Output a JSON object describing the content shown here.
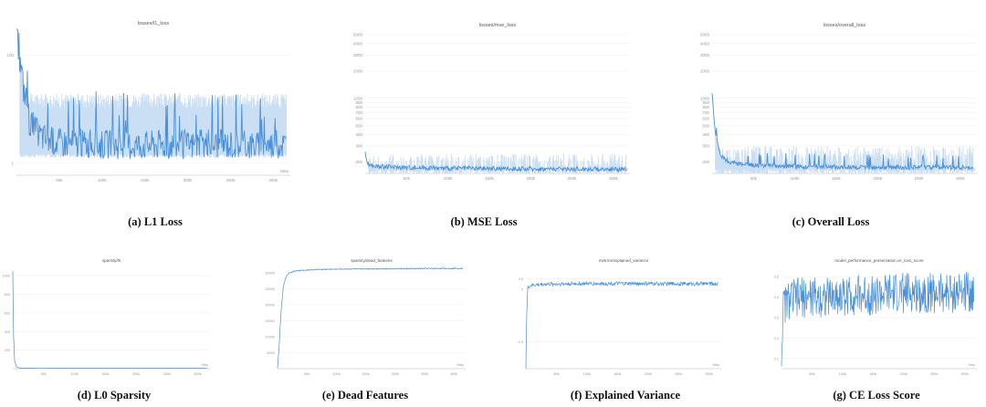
{
  "charts": [
    {
      "id": "l1",
      "chart_data": {
        "type": "line",
        "title": "losses/l1_loss",
        "caption": "(a) L1 Loss",
        "xlabel": "Step",
        "xlim": [
          0,
          320000
        ],
        "x_ticks": [
          50000,
          100000,
          150000,
          200000,
          250000,
          300000
        ],
        "x_tick_labels": [
          "50k",
          "100k",
          "150k",
          "200k",
          "250k",
          "300k"
        ],
        "y_scale": "log",
        "ylim": [
          0.6,
          300
        ],
        "y_ticks": [
          1,
          100
        ],
        "y_tick_labels": [
          "1",
          "100"
        ],
        "color": "#4a90d9",
        "series": [
          {
            "x": [
              0,
              3000,
              8000,
              15000,
              25000,
              40000,
              60000,
              90000,
              120000,
              160000,
              200000,
              240000,
              280000,
              315000
            ],
            "y": [
              220,
              90,
              25,
              6,
              3.5,
              2.6,
              2.4,
              2.3,
              2.2,
              2.3,
              2.2,
              2.3,
              2.2,
              2.3
            ]
          }
        ],
        "band_high": 15,
        "band_low": 1.4
      }
    },
    {
      "id": "mse",
      "chart_data": {
        "type": "line",
        "title": "losses/mse_loss",
        "caption": "(b) MSE Loss",
        "xlabel": "Step",
        "xlim": [
          0,
          320000
        ],
        "x_ticks": [
          50000,
          100000,
          150000,
          200000,
          250000,
          300000
        ],
        "x_tick_labels": [
          "50k",
          "100k",
          "150k",
          "200k",
          "250k",
          "300k"
        ],
        "y_scale": "log",
        "ylim": [
          150,
          5500
        ],
        "y_ticks": [
          200,
          300,
          400,
          500,
          600,
          700,
          800,
          900,
          1000,
          2000,
          3000,
          4000,
          5000
        ],
        "y_tick_labels": [
          "200",
          "300",
          "400",
          "500",
          "600",
          "700",
          "800",
          "900",
          "1000",
          "2000",
          "3000",
          "4000",
          "5000"
        ],
        "color": "#4a90d9",
        "series": [
          {
            "x": [
              0,
              2000,
              5000,
              10000,
              20000,
              40000,
              80000,
              120000,
              160000,
              200000,
              240000,
              280000,
              315000
            ],
            "y": [
              260,
              200,
              185,
              180,
              178,
              175,
              172,
              170,
              169,
              168,
              168,
              167,
              166
            ]
          }
        ],
        "band_high": 190,
        "band_low": 160
      }
    },
    {
      "id": "overall",
      "chart_data": {
        "type": "line",
        "title": "losses/overall_loss",
        "caption": "(c) Overall Loss",
        "xlabel": "Step",
        "xlim": [
          0,
          320000
        ],
        "x_ticks": [
          50000,
          100000,
          150000,
          200000,
          250000,
          300000
        ],
        "x_tick_labels": [
          "50k",
          "100k",
          "150k",
          "200k",
          "250k",
          "300k"
        ],
        "y_scale": "log",
        "ylim": [
          150,
          5500
        ],
        "y_ticks": [
          200,
          300,
          400,
          500,
          600,
          700,
          800,
          900,
          1000,
          2000,
          3000,
          4000,
          5000
        ],
        "y_tick_labels": [
          "200",
          "300",
          "400",
          "500",
          "600",
          "700",
          "800",
          "900",
          "1000",
          "2000",
          "3000",
          "4000",
          "5000"
        ],
        "color": "#4a90d9",
        "series": [
          {
            "x": [
              0,
              2000,
              5000,
              10000,
              20000,
              40000,
              80000,
              120000,
              160000,
              200000,
              240000,
              280000,
              315000
            ],
            "y": [
              1200,
              600,
              350,
              240,
              200,
              185,
              180,
              178,
              176,
              175,
              175,
              174,
              174
            ]
          }
        ],
        "band_high": 230,
        "band_low": 160
      }
    },
    {
      "id": "l0",
      "chart_data": {
        "type": "line",
        "title": "sparsity/l0",
        "caption": "(d) L0 Sparsity",
        "xlabel": "Step",
        "xlim": [
          0,
          320000
        ],
        "x_ticks": [
          50000,
          100000,
          150000,
          200000,
          250000,
          300000
        ],
        "x_tick_labels": [
          "50k",
          "100k",
          "150k",
          "200k",
          "250k",
          "300k"
        ],
        "y_scale": "linear",
        "ylim": [
          0,
          1100
        ],
        "y_ticks": [
          200,
          400,
          600,
          800,
          1000
        ],
        "y_tick_labels": [
          "200",
          "400",
          "600",
          "800",
          "1000"
        ],
        "color": "#4a90d9",
        "series": [
          {
            "x": [
              0,
              1000,
              3000,
              6000,
              10000,
              20000,
              60000,
              120000,
              200000,
              280000,
              315000
            ],
            "y": [
              1050,
              400,
              80,
              20,
              8,
              5,
              4,
              4,
              4,
              4,
              4
            ]
          }
        ]
      }
    },
    {
      "id": "dead",
      "chart_data": {
        "type": "line",
        "title": "sparsity/dead_features",
        "caption": "(e) Dead Features",
        "xlabel": "Step",
        "xlim": [
          0,
          320000
        ],
        "x_ticks": [
          50000,
          100000,
          150000,
          200000,
          250000,
          300000
        ],
        "x_tick_labels": [
          "50k",
          "100k",
          "150k",
          "200k",
          "250k",
          "300k"
        ],
        "y_scale": "linear",
        "ylim": [
          0,
          32000
        ],
        "y_ticks": [
          5000,
          10000,
          15000,
          20000,
          25000,
          30000
        ],
        "y_tick_labels": [
          "5000",
          "10000",
          "15000",
          "20000",
          "25000",
          "30000"
        ],
        "color": "#4a90d9",
        "series": [
          {
            "x": [
              0,
              3000,
              6000,
              10000,
              15000,
              20000,
              30000,
              50000,
              80000,
              120000,
              200000,
              300000,
              315000
            ],
            "y": [
              0,
              8000,
              18000,
              26000,
              29000,
              30000,
              30600,
              30900,
              31100,
              31200,
              31300,
              31400,
              31400
            ]
          }
        ]
      }
    },
    {
      "id": "ev",
      "chart_data": {
        "type": "line",
        "title": "metrics/explained_variance",
        "caption": "(f) Explained Variance",
        "xlabel": "Step",
        "xlim": [
          0,
          320000
        ],
        "x_ticks": [
          50000,
          100000,
          150000,
          200000,
          250000,
          300000
        ],
        "x_tick_labels": [
          "50k",
          "100k",
          "150k",
          "200k",
          "250k",
          "300k"
        ],
        "y_scale": "linear",
        "ylim": [
          -3.8,
          1.1
        ],
        "y_ticks": [
          -2.5,
          0,
          0.5
        ],
        "y_tick_labels": [
          "-2.5",
          "0",
          "0.5"
        ],
        "color": "#4a90d9",
        "series": [
          {
            "x": [
              0,
              1000,
              3000,
              6000,
              10000,
              30000,
              80000,
              150000,
              220000,
              280000,
              315000
            ],
            "y": [
              -3.8,
              -1.5,
              0.05,
              0.15,
              0.2,
              0.25,
              0.27,
              0.28,
              0.27,
              0.27,
              0.27
            ]
          }
        ]
      }
    },
    {
      "id": "ce",
      "chart_data": {
        "type": "line",
        "title": "model_performance_preservation.ce_loss_score",
        "caption": "(g) CE Loss Score",
        "xlabel": "Step",
        "xlim": [
          0,
          320000
        ],
        "x_ticks": [
          50000,
          100000,
          150000,
          200000,
          250000,
          300000
        ],
        "x_tick_labels": [
          "50k",
          "100k",
          "150k",
          "200k",
          "250k",
          "300k"
        ],
        "y_scale": "linear",
        "ylim": [
          0.05,
          0.55
        ],
        "y_ticks": [
          0.1,
          0.2,
          0.3,
          0.4,
          0.5
        ],
        "y_tick_labels": [
          "0.1",
          "0.2",
          "0.3",
          "0.4",
          "0.5"
        ],
        "color": "#4a90d9",
        "series": [
          {
            "x": [
              0,
              2000,
              6000,
              15000,
              40000,
              80000,
              120000,
              160000,
              200000,
              240000,
              280000,
              315000
            ],
            "y": [
              0.1,
              0.33,
              0.37,
              0.39,
              0.4,
              0.4,
              0.41,
              0.41,
              0.42,
              0.42,
              0.42,
              0.43
            ]
          }
        ]
      }
    }
  ]
}
